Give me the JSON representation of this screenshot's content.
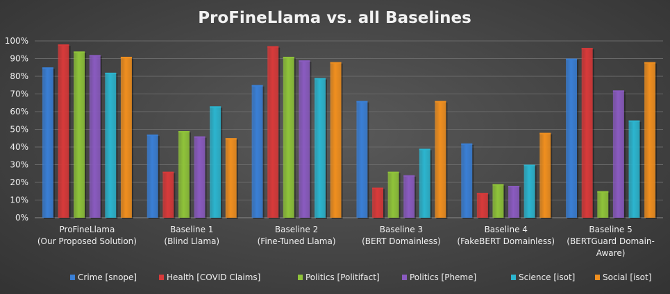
{
  "chart_data": {
    "type": "bar",
    "title": "ProFineLlama vs. all Baselines",
    "xlabel": "",
    "ylabel": "",
    "ylim": [
      0,
      100
    ],
    "yticks": [
      "0%",
      "10%",
      "20%",
      "30%",
      "40%",
      "50%",
      "60%",
      "70%",
      "80%",
      "90%",
      "100%"
    ],
    "grid": true,
    "legend_position": "bottom",
    "categories": [
      [
        "ProFineLlama",
        "(Our Proposed Solution)"
      ],
      [
        "Baseline 1",
        "(Blind Llama)"
      ],
      [
        "Baseline 2",
        "(Fine-Tuned Llama)"
      ],
      [
        "Baseline 3",
        "(BERT Domainless)"
      ],
      [
        "Baseline 4",
        "(FakeBERT Domainless)"
      ],
      [
        "Baseline 5",
        "(BERTGuard Domain-",
        "Aware)"
      ]
    ],
    "series": [
      {
        "name": "Crime [snope]",
        "color": "#3a7fd5",
        "values": [
          85,
          47,
          75,
          66,
          42,
          90
        ]
      },
      {
        "name": "Health [COVID Claims]",
        "color": "#d83a3a",
        "values": [
          98,
          26,
          97,
          17,
          14,
          96
        ]
      },
      {
        "name": "Politics [Politifact]",
        "color": "#8fc33a",
        "values": [
          94,
          49,
          91,
          26,
          19,
          15
        ]
      },
      {
        "name": "Politics [Pheme]",
        "color": "#8a5bc0",
        "values": [
          92,
          46,
          89,
          24,
          18,
          72
        ]
      },
      {
        "name": "Science [isot]",
        "color": "#2cb5cf",
        "values": [
          82,
          63,
          79,
          39,
          30,
          55
        ]
      },
      {
        "name": "Social [isot]",
        "color": "#f08f1f",
        "values": [
          91,
          45,
          88,
          66,
          48,
          88
        ]
      }
    ]
  }
}
